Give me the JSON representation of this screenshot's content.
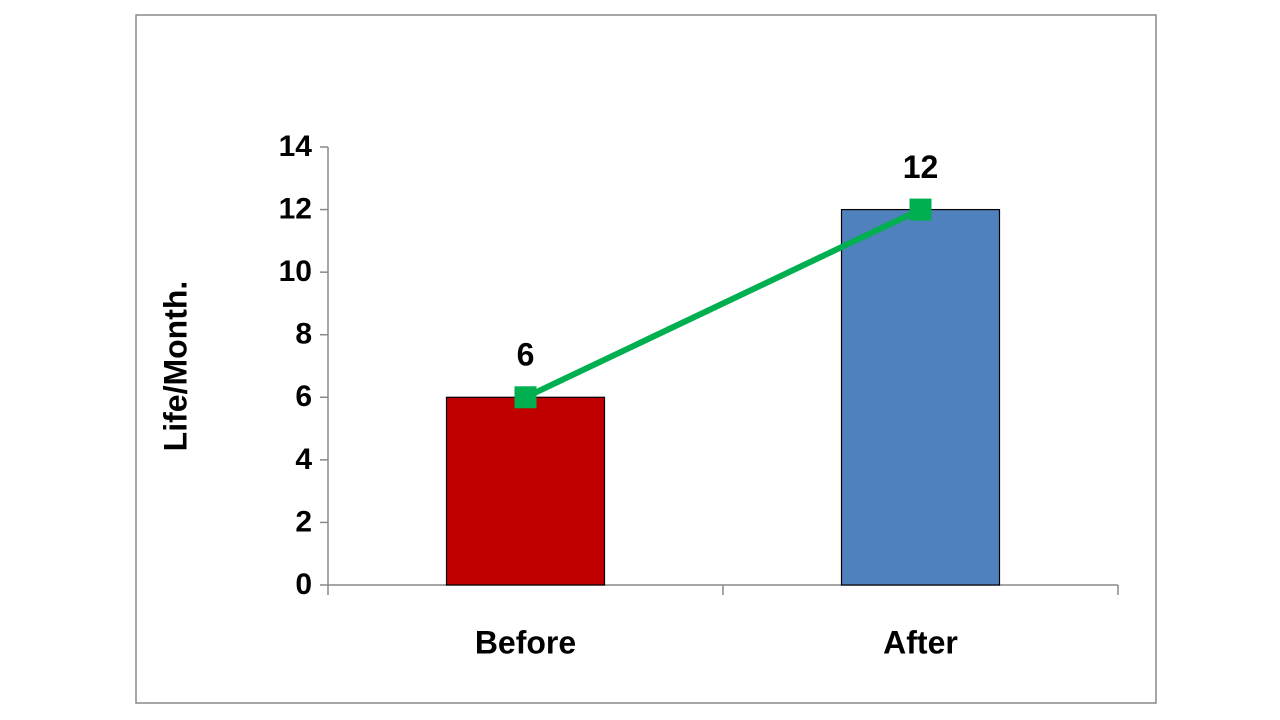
{
  "chart_data": {
    "type": "bar",
    "y_label": "Life/Month.",
    "categories": [
      "Before",
      "After"
    ],
    "values": [
      6,
      12
    ],
    "colors": [
      "#c00000",
      "#4f81bd"
    ],
    "line_values": [
      6,
      12
    ],
    "line_color": "#00b050",
    "ylim": [
      0,
      14
    ],
    "yticks": [
      0,
      2,
      4,
      6,
      8,
      10,
      12,
      14
    ]
  }
}
